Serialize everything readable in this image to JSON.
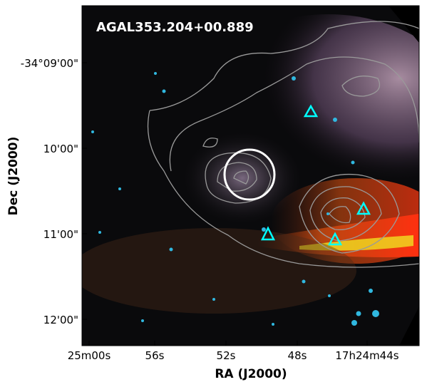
{
  "image": {
    "label": "AGAL353.204+00.889"
  },
  "x_axis": {
    "title": "RA (J2000)",
    "ticks": [
      "25m00s",
      "56s",
      "52s",
      "48s",
      "17h24m44s"
    ]
  },
  "y_axis": {
    "title": "Dec (J2000)",
    "ticks": [
      "-34°09'00\"",
      "10'00\"",
      "11'00\"",
      "12'00\""
    ]
  }
}
